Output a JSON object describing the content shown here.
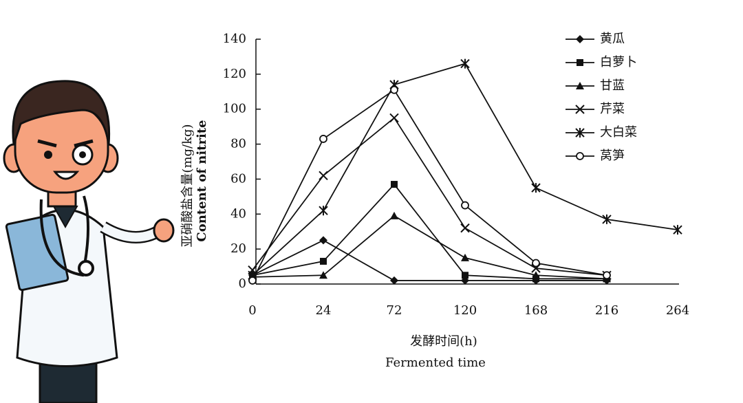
{
  "chart_data": {
    "type": "line",
    "categories": [
      "0",
      "24",
      "72",
      "120",
      "168",
      "216",
      "264"
    ],
    "series": [
      {
        "name": "黄瓜",
        "color": "#111111",
        "marker": "diamond",
        "values": [
          5,
          25,
          2,
          2,
          2,
          2,
          null
        ]
      },
      {
        "name": "白萝卜",
        "color": "#111111",
        "marker": "square",
        "values": [
          5,
          13,
          57,
          5,
          3,
          3,
          null
        ]
      },
      {
        "name": "甘蓝",
        "color": "#111111",
        "marker": "triangle",
        "values": [
          4,
          5,
          39,
          15,
          5,
          3,
          null
        ]
      },
      {
        "name": "芹菜",
        "color": "#111111",
        "marker": "x",
        "values": [
          8,
          62,
          95,
          32,
          9,
          5,
          null
        ]
      },
      {
        "name": "大白菜",
        "color": "#111111",
        "marker": "star",
        "values": [
          5,
          42,
          114,
          126,
          55,
          37,
          31
        ]
      },
      {
        "name": "莴笋",
        "color": "#111111",
        "marker": "circle",
        "values": [
          2,
          83,
          111,
          45,
          12,
          5,
          null
        ]
      }
    ],
    "ylim": [
      0,
      140
    ],
    "yticks": [
      0,
      20,
      40,
      60,
      80,
      100,
      120,
      140
    ],
    "ylabel": [
      "亚硝酸盐含量(mg/kg)",
      "Content of nitrite"
    ],
    "xlabel": [
      "发酵时间(h)",
      "Fermented time"
    ],
    "legend": "upper right"
  }
}
